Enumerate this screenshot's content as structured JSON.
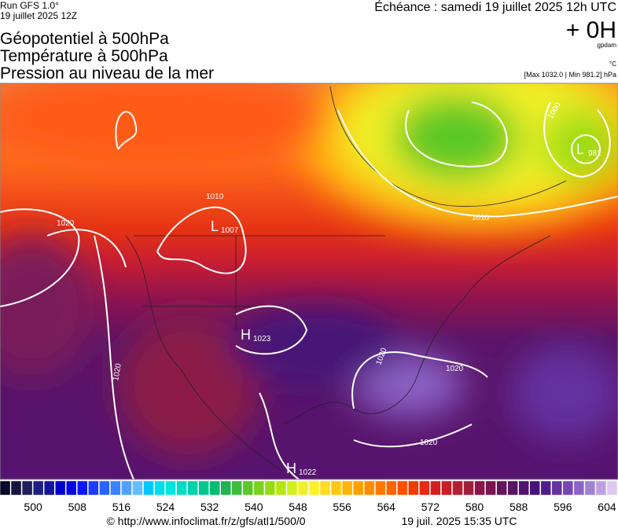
{
  "header": {
    "run": "Run GFS 1.0°",
    "date": "19 juillet 2025 12Z",
    "forecast": "Échéance : samedi 19 juillet 2025 12h UTC",
    "lead": "+ 0H",
    "unit": "gpdam",
    "temp_unit": "°C",
    "range": "[Max 1032.0 | Min 981.2] hPa",
    "titles": [
      "Géopotentiel à 500hPa",
      "Température à 500hPa",
      "Pression au niveau de la mer"
    ]
  },
  "map": {
    "centers": [
      {
        "type": "L",
        "value": "1007"
      },
      {
        "type": "H",
        "value": "1023"
      },
      {
        "type": "H",
        "value": "1022"
      },
      {
        "type": "L",
        "value": "981"
      }
    ],
    "isobar_labels": [
      "1010",
      "1020",
      "1020",
      "1000",
      "1010",
      "1020",
      "1020",
      "1020"
    ]
  },
  "colorbar": {
    "range": [
      494,
      606
    ],
    "ticks": [
      500,
      508,
      516,
      524,
      532,
      540,
      548,
      556,
      564,
      572,
      580,
      588,
      596,
      604
    ],
    "colors": [
      "#0a0a28",
      "#14143c",
      "#1e1e5a",
      "#1e1e82",
      "#1414a0",
      "#0000c8",
      "#0000e6",
      "#0a14ff",
      "#1e3cff",
      "#2864ff",
      "#3c82ff",
      "#50a0ff",
      "#64beff",
      "#00c8ff",
      "#00dcf0",
      "#00e6dc",
      "#00dcc8",
      "#00d2aa",
      "#00c88c",
      "#00be6e",
      "#1eb450",
      "#3cbe3c",
      "#5ac828",
      "#78d21e",
      "#96dc14",
      "#b4e614",
      "#d2f01e",
      "#f0f028",
      "#fff028",
      "#ffdc1e",
      "#ffc814",
      "#ffb40a",
      "#ffa000",
      "#ff8c00",
      "#ff7800",
      "#ff6400",
      "#ff5000",
      "#f03c00",
      "#e62814",
      "#d21e1e",
      "#c81e28",
      "#b41e32",
      "#a01e3c",
      "#8c1446",
      "#781450",
      "#64145a",
      "#5a1464",
      "#50146e",
      "#461478",
      "#501e8c",
      "#6432a0",
      "#7846b4",
      "#8c64c8",
      "#a082d2",
      "#bea0e1",
      "#dcc8f0"
    ]
  },
  "footer": {
    "source": "© http://www.infoclimat.fr/z/gfs/atl1/500/0",
    "generated": "19 juil. 2025 15:35 UTC"
  }
}
